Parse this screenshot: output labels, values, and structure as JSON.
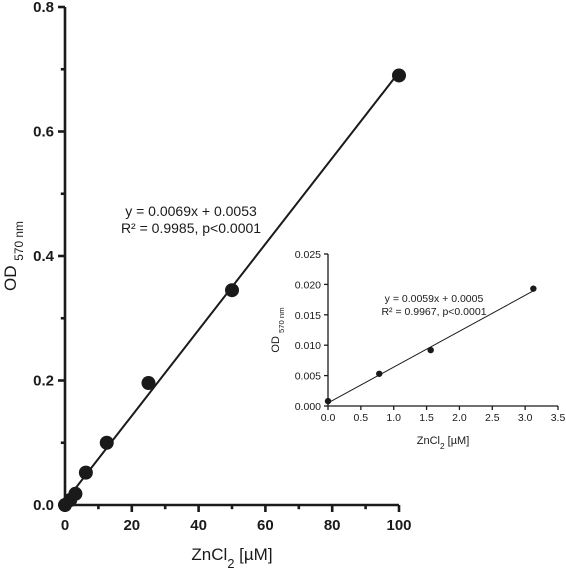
{
  "chart_data": [
    {
      "type": "scatter",
      "xlabel": "ZnCl",
      "xlabel_sub": "2",
      "xlabel_unit": " [µM]",
      "ylabel": "OD",
      "ylabel_sub": "570 nm",
      "xlim": [
        0,
        100
      ],
      "ylim": [
        0,
        0.8
      ],
      "xticks": [
        "0",
        "20",
        "40",
        "60",
        "80",
        "100"
      ],
      "yticks": [
        "0.0",
        "0.2",
        "0.4",
        "0.6",
        "0.8"
      ],
      "grid": false,
      "series": [
        {
          "x": [
            0,
            1.5625,
            3.125,
            6.25,
            12.5,
            25,
            50,
            100
          ],
          "y": [
            0.0,
            0.008,
            0.018,
            0.052,
            0.1,
            0.196,
            0.345,
            0.69
          ]
        }
      ],
      "fit": {
        "slope": 0.0069,
        "intercept": 0.0053
      },
      "annotations": [
        "y = 0.0069x + 0.0053",
        "R² = 0.9985, p<0.0001"
      ]
    },
    {
      "type": "scatter",
      "xlabel": "ZnCl",
      "xlabel_sub": "2",
      "xlabel_unit": " [µM]",
      "ylabel": "OD",
      "ylabel_sub": "570 nm",
      "xlim": [
        0,
        3.5
      ],
      "ylim": [
        0,
        0.025
      ],
      "xticks": [
        "0.0",
        "0.5",
        "1.0",
        "1.5",
        "2.0",
        "2.5",
        "3.0",
        "3.5"
      ],
      "yticks": [
        "0.000",
        "0.005",
        "0.010",
        "0.015",
        "0.020",
        "0.025"
      ],
      "grid": false,
      "series": [
        {
          "x": [
            0,
            0.78,
            1.5625,
            3.125
          ],
          "y": [
            0.0008,
            0.0053,
            0.0092,
            0.0193
          ]
        }
      ],
      "fit": {
        "slope": 0.0059,
        "intercept": 0.0005
      },
      "annotations": [
        "y = 0.0059x + 0.0005",
        "R² = 0.9967, p<0.0001"
      ]
    }
  ]
}
